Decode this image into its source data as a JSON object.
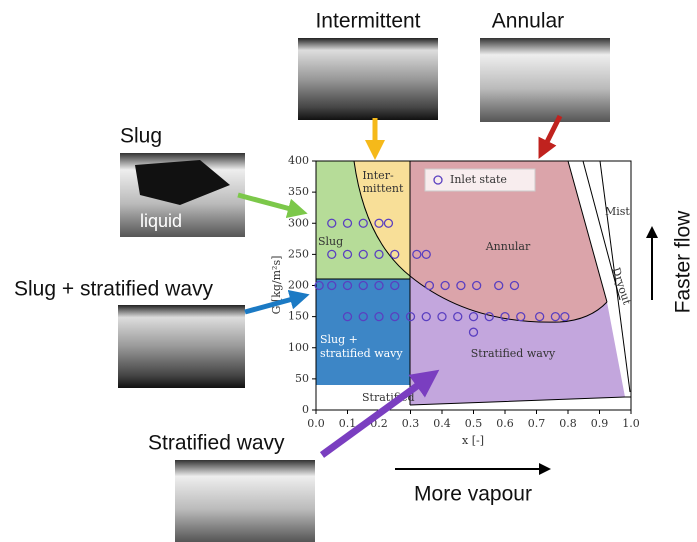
{
  "chart_data": {
    "type": "scatter",
    "xlabel": "x [-]",
    "ylabel": "G [kg/m²s]",
    "xlim": [
      0,
      1
    ],
    "ylim": [
      0,
      400
    ],
    "xticks": [
      {
        "value": 0,
        "label": "0.0"
      },
      0.1,
      0.2,
      0.3,
      0.4,
      0.5,
      0.6,
      0.7,
      0.8,
      0.9,
      {
        "value": 1,
        "label": "1.0"
      }
    ],
    "yticks": [
      0,
      50,
      100,
      150,
      200,
      250,
      300,
      350,
      400
    ],
    "legend": "top",
    "series": [
      {
        "name": "Inlet state",
        "color": "#5a3fc0",
        "x": [
          0.05,
          0.1,
          0.15,
          0.2,
          0.23,
          0.05,
          0.1,
          0.15,
          0.2,
          0.25,
          0.32,
          0.35,
          0.01,
          0.05,
          0.1,
          0.15,
          0.2,
          0.25,
          0.36,
          0.41,
          0.46,
          0.51,
          0.58,
          0.63,
          0.1,
          0.15,
          0.2,
          0.25,
          0.3,
          0.35,
          0.4,
          0.45,
          0.5,
          0.55,
          0.6,
          0.65,
          0.71,
          0.76,
          0.79,
          0.5
        ],
        "values": [
          300,
          300,
          300,
          300,
          300,
          250,
          250,
          250,
          250,
          250,
          250,
          250,
          200,
          200,
          200,
          200,
          200,
          200,
          200,
          200,
          200,
          200,
          200,
          200,
          150,
          150,
          150,
          150,
          150,
          150,
          150,
          150,
          150,
          150,
          150,
          150,
          150,
          150,
          150,
          125
        ]
      }
    ],
    "regions": [
      "Slug",
      "Inter-",
      "mittent",
      "Annular",
      "Slug +",
      "stratified wavy",
      "Stratified wavy",
      "Stratified",
      "Mist",
      "Dryout"
    ],
    "photo_labels": [
      "Intermittent",
      "Annular",
      "Slug",
      "liquid",
      "Slug + stratified wavy",
      "Stratified wavy"
    ],
    "directions": [
      "Faster flow",
      "More vapour"
    ]
  }
}
